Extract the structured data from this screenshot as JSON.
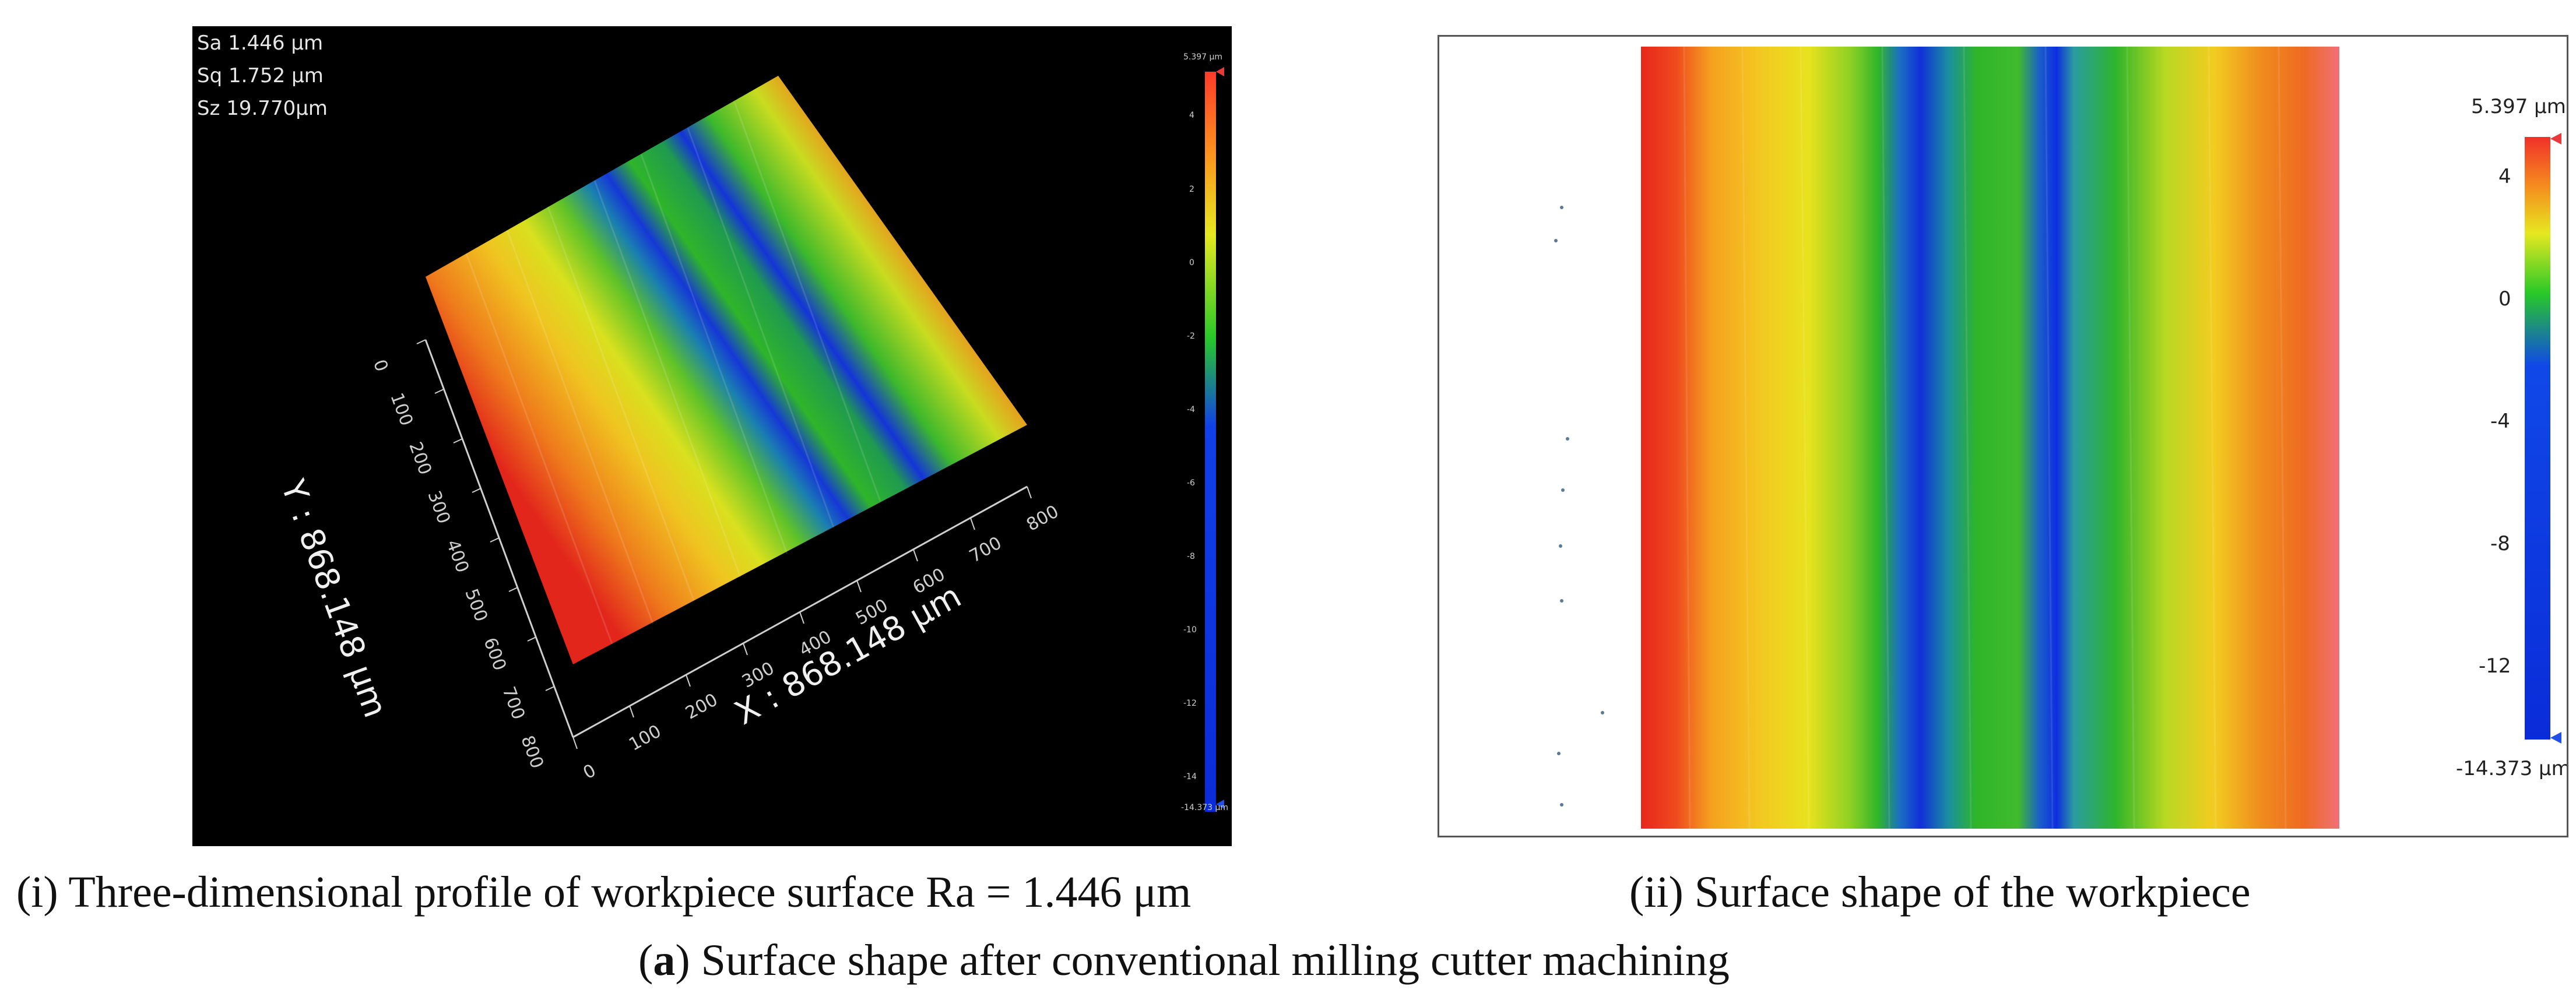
{
  "panel_3d": {
    "stats": [
      "Sa 1.446  μm",
      "Sq 1.752  μm",
      "Sz 19.770μm"
    ],
    "scale_max": "5.397 μm",
    "scale_min": "-14.373 μm",
    "scale_ticks": [
      "4",
      "2",
      "0",
      "-2",
      "-4",
      "-6",
      "-8",
      "-10",
      "-12",
      "-14"
    ],
    "x_axis_label": "X : 868.148 μm",
    "y_axis_label": "Y : 868.148 μm",
    "x_ticks": [
      "0",
      "100",
      "200",
      "300",
      "400",
      "500",
      "600",
      "700",
      "800"
    ],
    "y_ticks": [
      "0",
      "100",
      "200",
      "300",
      "400",
      "500",
      "600",
      "700",
      "800"
    ]
  },
  "panel_map": {
    "scale_max": "5.397 μm",
    "scale_min": "-14.373 μm",
    "scale_ticks": [
      "4",
      "0",
      "-4",
      "-8",
      "-12"
    ]
  },
  "captions": {
    "left": "(i) Three-dimensional profile of workpiece surface Ra = 1.446 μm",
    "right": "(ii) Surface shape of the workpiece",
    "bottom_bold": "a",
    "bottom_rest": ") Surface shape after conventional milling cutter machining"
  },
  "colors": {
    "red": "#e8281e",
    "orange": "#f08a1e",
    "yellow": "#f0e020",
    "green": "#2fb52a",
    "blue": "#1030d8"
  }
}
